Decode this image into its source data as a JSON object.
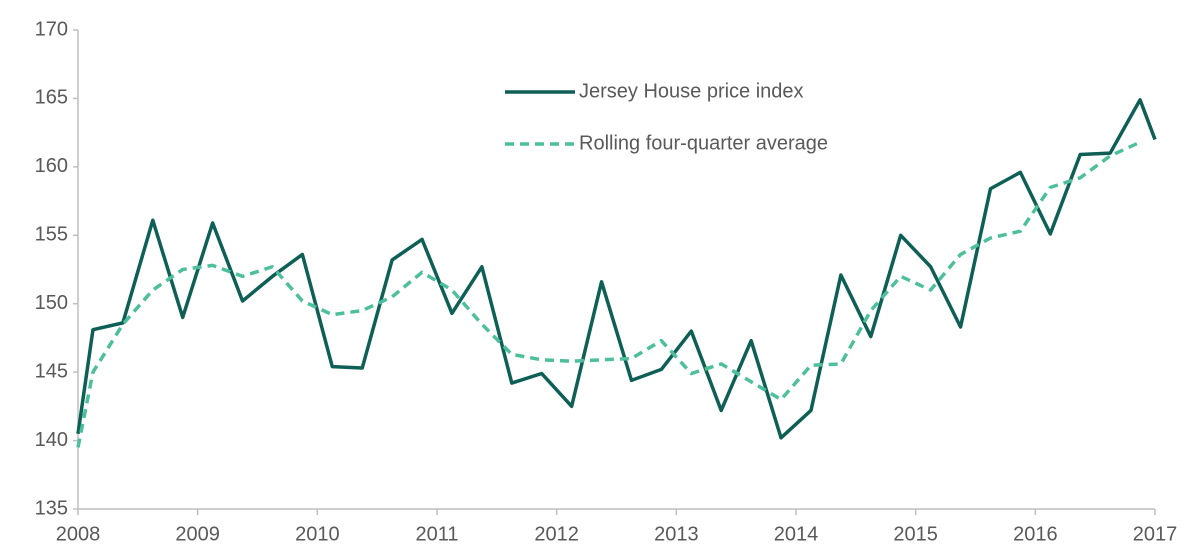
{
  "chart_data": {
    "type": "line",
    "x": [
      2008,
      2008.125,
      2008.375,
      2008.625,
      2008.875,
      2009.125,
      2009.375,
      2009.625,
      2009.875,
      2010.125,
      2010.375,
      2010.625,
      2010.875,
      2011.125,
      2011.375,
      2011.625,
      2011.875,
      2012.125,
      2012.375,
      2012.625,
      2012.875,
      2013.125,
      2013.375,
      2013.625,
      2013.875,
      2014.125,
      2014.375,
      2014.625,
      2014.875,
      2015.125,
      2015.375,
      2015.625,
      2015.875,
      2016.125,
      2016.375,
      2016.625,
      2016.875,
      2017
    ],
    "series": [
      {
        "name": "Jersey House price index",
        "color": "#0e5f55",
        "dashed": false,
        "values": [
          140.5,
          148.1,
          148.6,
          156.1,
          149,
          155.9,
          150.2,
          152,
          153.6,
          145.4,
          145.3,
          153.2,
          154.7,
          149.3,
          152.7,
          144.2,
          144.9,
          142.5,
          151.6,
          144.4,
          145.2,
          148,
          142.2,
          147.3,
          140.2,
          142.2,
          152.1,
          147.6,
          155,
          152.7,
          148.3,
          158.4,
          159.6,
          155.1,
          160.9,
          161,
          164.9,
          162
        ]
      },
      {
        "name": "Rolling four-quarter average",
        "color": "#4dbf9a",
        "dashed": true,
        "values": [
          139.5,
          145,
          148.5,
          151,
          152.5,
          152.8,
          152,
          152.7,
          150.2,
          149.2,
          149.5,
          150.5,
          152.3,
          151,
          148.5,
          146.3,
          145.9,
          145.8,
          145.9,
          146,
          147.3,
          144.9,
          145.6,
          144.3,
          143,
          145.5,
          145.6,
          149.5,
          152,
          151,
          153.6,
          154.8,
          155.3,
          158.5,
          159.2,
          160.8,
          161.8,
          null
        ]
      }
    ],
    "xlim": [
      2008,
      2017
    ],
    "xticks": [
      2008,
      2009,
      2010,
      2011,
      2012,
      2013,
      2014,
      2015,
      2016,
      2017
    ],
    "ylim": [
      135,
      170
    ],
    "yticks": [
      135,
      140,
      145,
      150,
      155,
      160,
      165,
      170
    ],
    "grid": false,
    "legend": "top"
  }
}
